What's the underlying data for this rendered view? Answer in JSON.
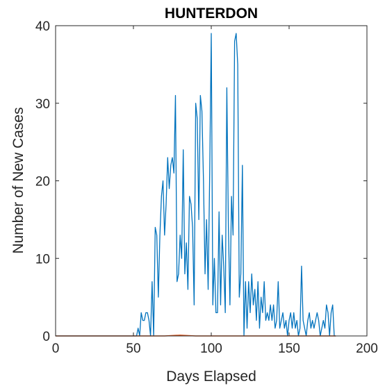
{
  "chart_data": {
    "type": "line",
    "title": "HUNTERDON",
    "xlabel": "Days Elapsed",
    "ylabel": "Number of New Cases",
    "xlim": [
      0,
      200
    ],
    "ylim": [
      0,
      40
    ],
    "xticks": [
      0,
      50,
      100,
      150,
      200
    ],
    "yticks": [
      0,
      10,
      20,
      30,
      40
    ],
    "grid": false,
    "box": true,
    "colors": {
      "series1": "#0072bd",
      "series2": "#d95319",
      "axis": "#262626"
    },
    "series": [
      {
        "x": [
          0,
          1,
          2,
          3,
          4,
          5,
          6,
          7,
          8,
          9,
          10,
          11,
          12,
          13,
          14,
          15,
          16,
          17,
          18,
          19,
          20,
          21,
          22,
          23,
          24,
          25,
          26,
          27,
          28,
          29,
          30,
          31,
          32,
          33,
          34,
          35,
          36,
          37,
          38,
          39,
          40,
          41,
          42,
          43,
          44,
          45,
          46,
          47,
          48,
          49,
          50,
          51,
          52,
          53,
          54,
          55,
          56,
          57,
          58,
          59,
          60,
          61,
          62,
          63,
          64,
          65,
          66,
          67,
          68,
          69,
          70,
          71,
          72,
          73,
          74,
          75,
          76,
          77,
          78,
          79,
          80,
          81,
          82,
          83,
          84,
          85,
          86,
          87,
          88,
          89,
          90,
          91,
          92,
          93,
          94,
          95,
          96,
          97,
          98,
          99,
          100,
          101,
          102,
          103,
          104,
          105,
          106,
          107,
          108,
          109,
          110,
          111,
          112,
          113,
          114,
          115,
          116,
          117,
          118,
          119,
          120,
          121,
          122,
          123,
          124,
          125,
          126,
          127,
          128,
          129,
          130,
          131,
          132,
          133,
          134,
          135,
          136,
          137,
          138,
          139,
          140,
          141,
          142,
          143,
          144,
          145,
          146,
          147,
          148,
          149,
          150,
          151,
          152,
          153,
          154,
          155,
          156,
          157,
          158,
          159,
          160,
          161,
          162,
          163,
          164,
          165,
          166,
          167,
          168,
          169,
          170,
          171,
          172,
          173,
          174,
          175,
          176,
          177,
          178,
          179,
          180
        ],
        "y": [
          0,
          0,
          0,
          0,
          0,
          0,
          0,
          0,
          0,
          0,
          0,
          0,
          0,
          0,
          0,
          0,
          0,
          0,
          0,
          0,
          0,
          0,
          0,
          0,
          0,
          0,
          0,
          0,
          0,
          0,
          0,
          0,
          0,
          0,
          0,
          0,
          0,
          0,
          0,
          0,
          0,
          0,
          0,
          0,
          0,
          0,
          0,
          0,
          0,
          0,
          0,
          0,
          0,
          1,
          0,
          3,
          2,
          2,
          3,
          3,
          2,
          0,
          7,
          0,
          14,
          13,
          5,
          13,
          18,
          20,
          13,
          17,
          23,
          19,
          22,
          23,
          21,
          31,
          7,
          8,
          13,
          10,
          24,
          8,
          12,
          6,
          18,
          17,
          14,
          4,
          30,
          28,
          15,
          31,
          29,
          20,
          8,
          15,
          6,
          21,
          39,
          4,
          10,
          3,
          3,
          16,
          4,
          13,
          9,
          3,
          32,
          14,
          4,
          18,
          13,
          38,
          39,
          35,
          5,
          8,
          22,
          0,
          7,
          1,
          7,
          3,
          8,
          4,
          6,
          2,
          7,
          1,
          5,
          3,
          7,
          2,
          3,
          2,
          4,
          2,
          4,
          1,
          2,
          7,
          1,
          2,
          3,
          1,
          2,
          0,
          2,
          3,
          1,
          3,
          1,
          2,
          0,
          1,
          9,
          2,
          1,
          0,
          2,
          3,
          1,
          2,
          1,
          2,
          3,
          2,
          0,
          1,
          2,
          1,
          4,
          3,
          0,
          3,
          4,
          0,
          0
        ]
      },
      {
        "x": [
          0,
          10,
          20,
          30,
          40,
          50,
          60,
          70,
          80,
          90,
          100,
          110,
          120,
          130,
          140,
          150,
          160,
          170,
          180
        ],
        "y": [
          0,
          0,
          0,
          0,
          0,
          0,
          0,
          0,
          0.1,
          0,
          0,
          0,
          0,
          0,
          0,
          0,
          0,
          0,
          0
        ]
      }
    ]
  }
}
